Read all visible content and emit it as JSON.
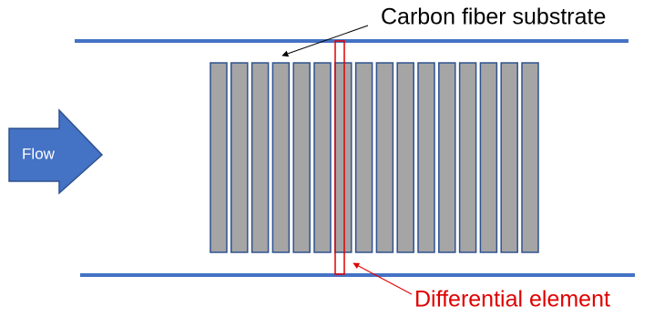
{
  "labels": {
    "substrate": "Carbon fiber substrate",
    "flow": "Flow",
    "element": "Differential element"
  }
}
